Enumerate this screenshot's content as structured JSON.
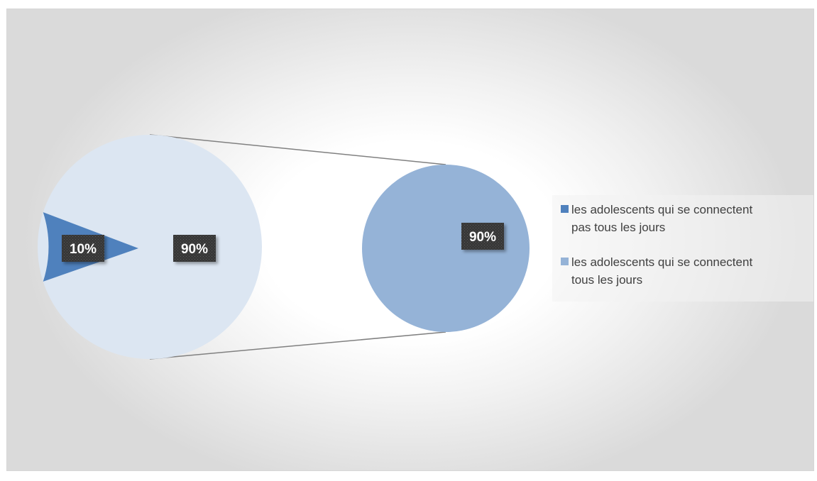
{
  "chart_data": {
    "type": "pie-of-pie",
    "title": "",
    "primary_pie": {
      "slices": [
        {
          "label": "les adolescents qui se connectent pas tous les jours",
          "value": 10,
          "label_text": "10%",
          "color": "#4f81bd"
        },
        {
          "label": "les adolescents qui se connectent tous les jours",
          "value": 90,
          "label_text": "90%",
          "color": "#dce6f2"
        }
      ]
    },
    "secondary_pie": {
      "slices": [
        {
          "label": "les adolescents qui se connectent tous les jours",
          "value": 90,
          "label_text": "90%",
          "color": "#95b3d7"
        }
      ]
    },
    "legend": {
      "position": "right",
      "entries": [
        {
          "text_lines": [
            "les adolescents qui se connectent",
            "pas tous les jours"
          ],
          "color": "#4f81bd"
        },
        {
          "text_lines": [
            "les adolescents qui se connectent",
            "tous les jours"
          ],
          "color": "#95b3d7"
        }
      ]
    },
    "connector_color": "#808080"
  }
}
